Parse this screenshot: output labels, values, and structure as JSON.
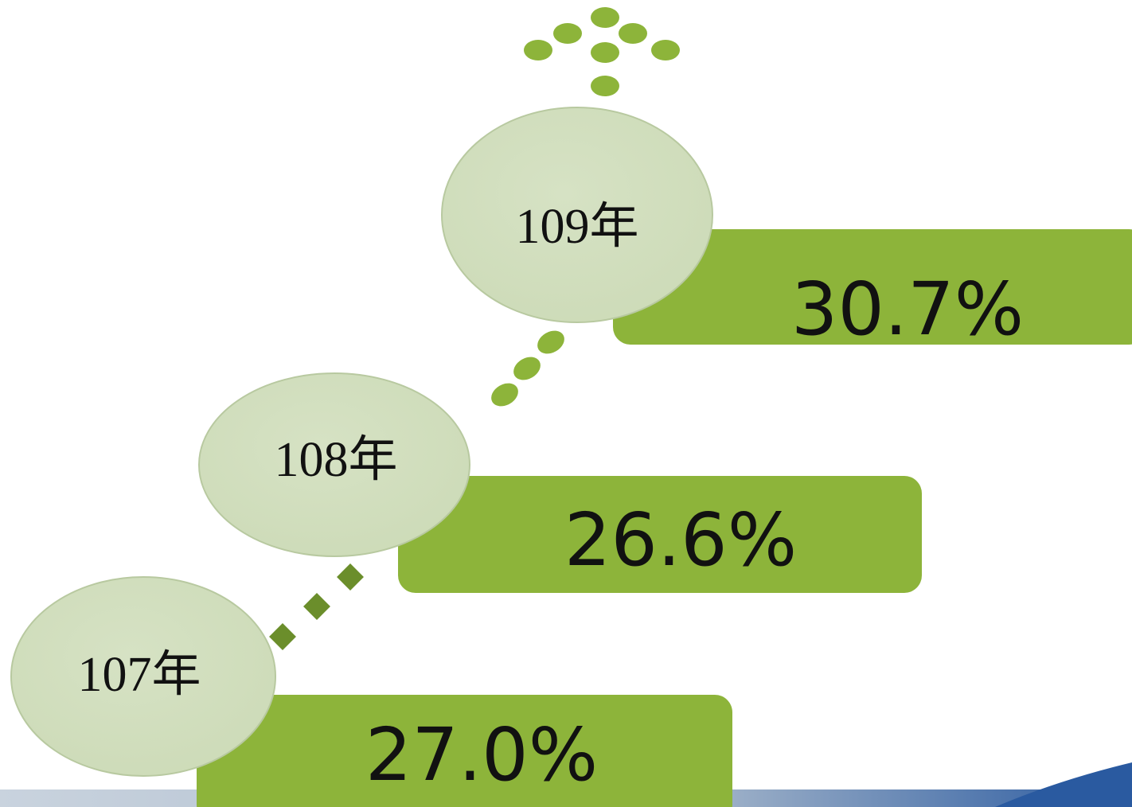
{
  "steps": [
    {
      "year": "109年",
      "value": "30.7%"
    },
    {
      "year": "108年",
      "value": "26.6%"
    },
    {
      "year": "107年",
      "value": "27.0%"
    }
  ]
}
